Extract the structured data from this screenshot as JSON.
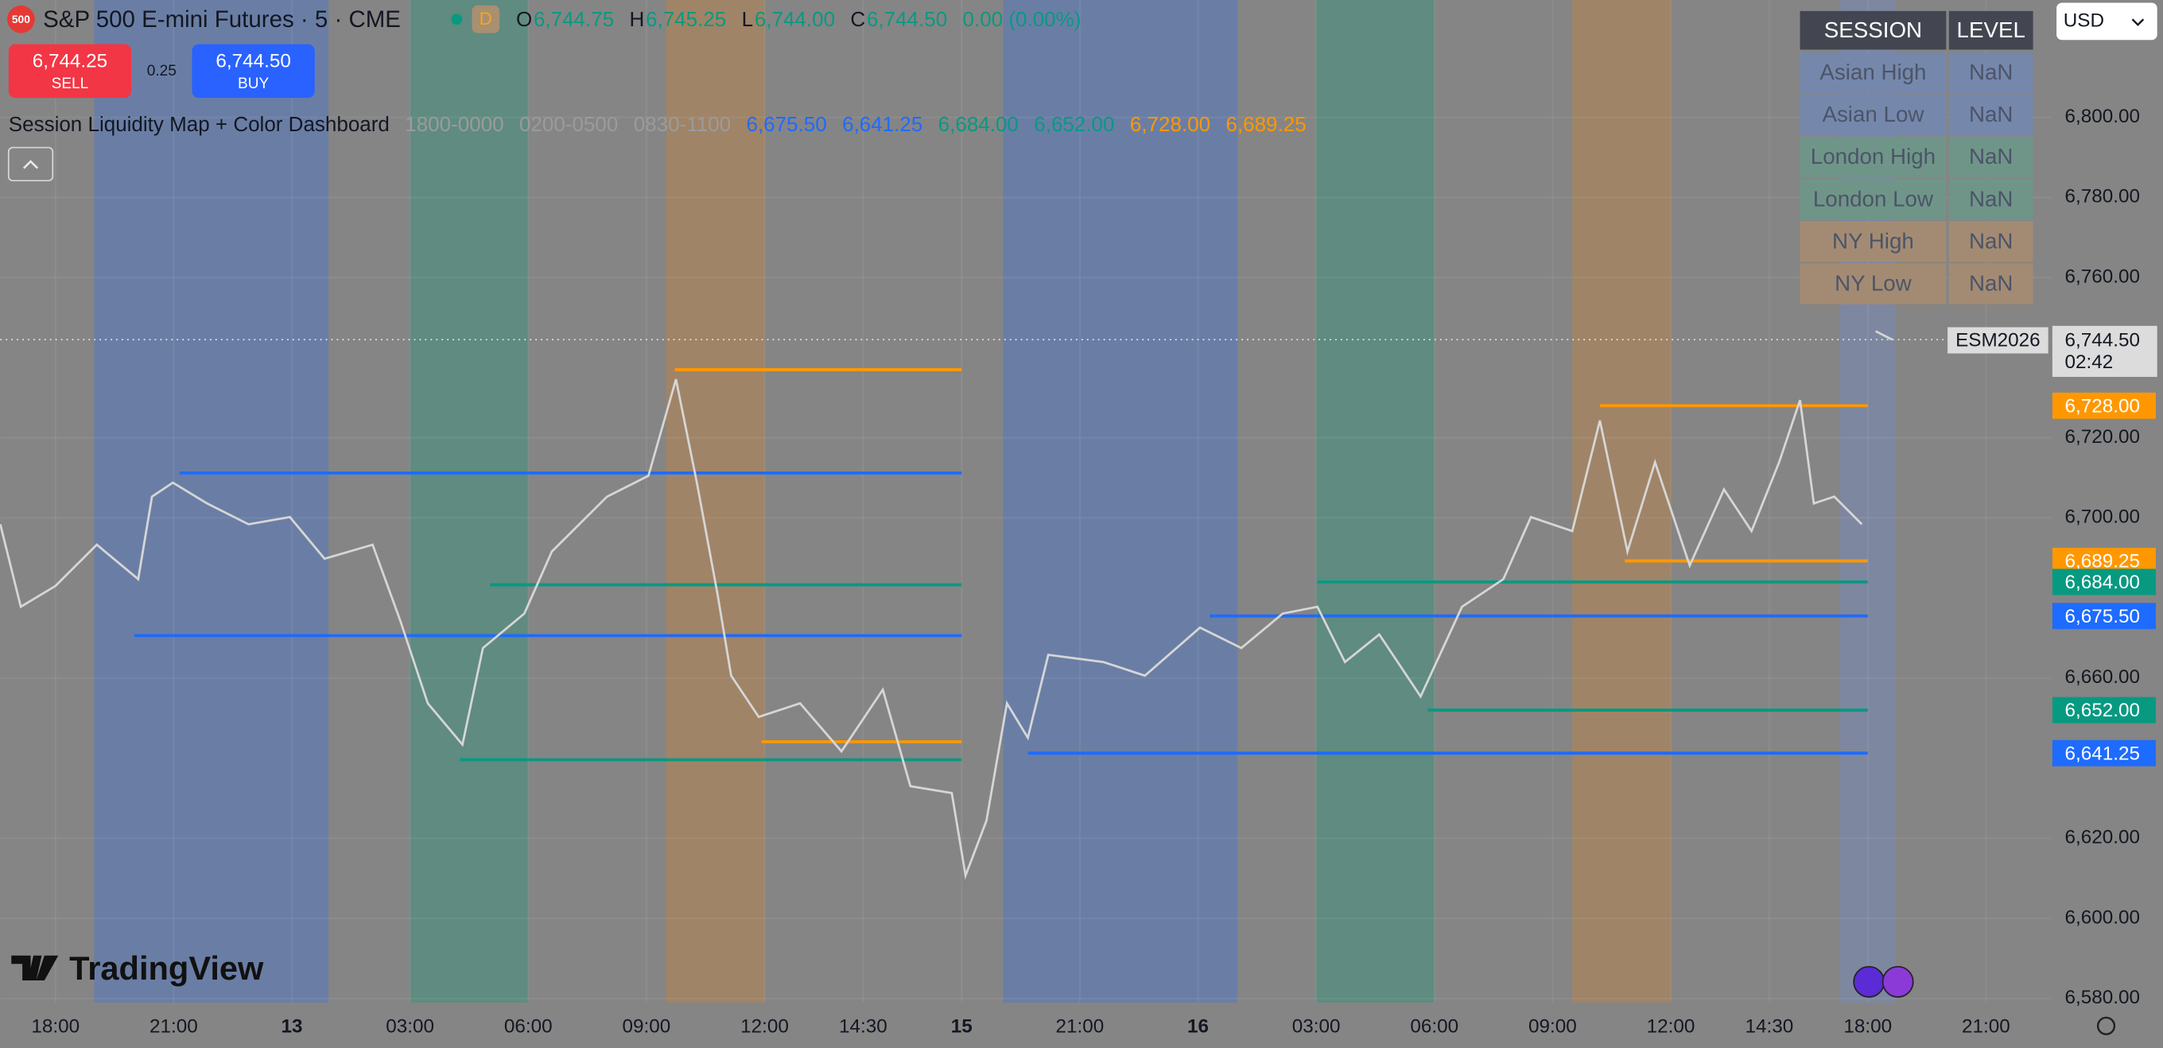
{
  "chart_data": {
    "type": "line",
    "title": "S&P 500 E-mini Futures · 5 · CME",
    "color": "#d6d6d6",
    "x": [
      -1.4,
      -0.88,
      0,
      1.05,
      2.1,
      2.45,
      2.98,
      3.85,
      4.9,
      5.95,
      6.83,
      8.05,
      8.75,
      9.45,
      10.33,
      10.85,
      11.9,
      12.6,
      14.0,
      15.05,
      15.75,
      16.28,
      16.8,
      17.15,
      17.85,
      18.9,
      19.95,
      21.0,
      21.7,
      22.75,
      23.1,
      23.63,
      24.15,
      24.68,
      25.2,
      26.6,
      27.65,
      29.05,
      30.1,
      31.15,
      32.03,
      32.73,
      33.6,
      34.65,
      35.7,
      36.75,
      37.45,
      38.5,
      39.2,
      39.9,
      40.6,
      41.48,
      42.35,
      43.05,
      43.75,
      44.28,
      44.63,
      45.15,
      45.85,
      46.0,
      46.2,
      46.62
    ],
    "values": [
      6698.4,
      6677.8,
      6683.0,
      6693.3,
      6684.7,
      6705.3,
      6708.8,
      6703.6,
      6698.4,
      6700.2,
      6689.8,
      6693.3,
      6674.4,
      6653.7,
      6643.4,
      6667.5,
      6676.1,
      6691.6,
      6705.3,
      6710.5,
      6734.6,
      6708.8,
      6681.2,
      6660.6,
      6650.3,
      6653.7,
      6641.7,
      6657.1,
      6633.0,
      6631.3,
      6610.7,
      6624.4,
      6653.7,
      6645.1,
      6665.8,
      6664.0,
      6660.6,
      6672.6,
      6667.5,
      6676.1,
      6677.8,
      6664.0,
      6670.9,
      6655.4,
      6677.8,
      6684.7,
      6700.2,
      6696.7,
      6724.3,
      6691.6,
      6713.9,
      6688.1,
      6707.1,
      6696.7,
      6713.9,
      6729.4,
      6703.6,
      6705.3,
      6698.4,
      null,
      6746.6,
      6744.5
    ],
    "xlim": [
      -1.4,
      50.65
    ],
    "ylim": [
      6579,
      6829.3
    ],
    "grid": true,
    "xticks": [
      {
        "value": 0,
        "label": "18:00"
      },
      {
        "value": 3,
        "label": "21:00"
      },
      {
        "value": 6,
        "label": "13"
      },
      {
        "value": 9,
        "label": "03:00"
      },
      {
        "value": 12,
        "label": "06:00"
      },
      {
        "value": 15,
        "label": "09:00"
      },
      {
        "value": 18,
        "label": "12:00"
      },
      {
        "value": 20.5,
        "label": "14:30"
      },
      {
        "value": 23,
        "label": "15"
      },
      {
        "value": 26,
        "label": "21:00"
      },
      {
        "value": 29,
        "label": "16"
      },
      {
        "value": 32,
        "label": "03:00"
      },
      {
        "value": 35,
        "label": "06:00"
      },
      {
        "value": 38,
        "label": "09:00"
      },
      {
        "value": 41,
        "label": "12:00"
      },
      {
        "value": 43.5,
        "label": "14:30"
      },
      {
        "value": 46,
        "label": "18:00"
      },
      {
        "value": 49,
        "label": "21:00"
      }
    ],
    "yticks": [
      {
        "value": 6800,
        "label": "6,800.00"
      },
      {
        "value": 6780,
        "label": "6,780.00"
      },
      {
        "value": 6760,
        "label": "6,760.00"
      },
      {
        "value": 6720,
        "label": "6,720.00"
      },
      {
        "value": 6700,
        "label": "6,700.00"
      },
      {
        "value": 6660,
        "label": "6,660.00"
      },
      {
        "value": 6620,
        "label": "6,620.00"
      },
      {
        "value": 6600,
        "label": "6,600.00"
      },
      {
        "value": 6580,
        "label": "6,580.00"
      }
    ],
    "sessions": [
      {
        "start": 0.98,
        "end": 6.93,
        "color": "#6a7ea5"
      },
      {
        "start": 9.0,
        "end": 12.0,
        "color": "#5f8b80"
      },
      {
        "start": 15.5,
        "end": 18.0,
        "color": "#a08467"
      },
      {
        "start": 24.05,
        "end": 30.0,
        "color": "#6a7ea5"
      },
      {
        "start": 32.0,
        "end": 35.0,
        "color": "#5f8b80"
      },
      {
        "start": 38.5,
        "end": 41.0,
        "color": "#a08467"
      },
      {
        "start": 45.3,
        "end": 46.7,
        "color": "#7d87a0"
      }
    ],
    "levels": [
      {
        "start": 15.72,
        "end": 23.0,
        "value": 6737.0,
        "color": "#ff9800"
      },
      {
        "start": 3.15,
        "end": 23.0,
        "value": 6711.2,
        "color": "#1e6bff"
      },
      {
        "start": 11.03,
        "end": 23.0,
        "value": 6683.3,
        "color": "#089981"
      },
      {
        "start": 2.0,
        "end": 23.0,
        "value": 6670.6,
        "color": "#1e6bff"
      },
      {
        "start": 17.92,
        "end": 23.0,
        "value": 6644.1,
        "color": "#ff9800"
      },
      {
        "start": 10.26,
        "end": 23.0,
        "value": 6639.6,
        "color": "#089981"
      },
      {
        "start": 39.2,
        "end": 46.0,
        "value": 6728.0,
        "value_label": "6,728.00",
        "color": "#ff9800"
      },
      {
        "start": 39.83,
        "end": 46.0,
        "value": 6689.25,
        "value_label": "6,689.25",
        "color": "#ff9800"
      },
      {
        "start": 32.03,
        "end": 46.0,
        "value": 6684.0,
        "value_label": "6,684.00",
        "color": "#089981"
      },
      {
        "start": 29.3,
        "end": 46.0,
        "value": 6675.5,
        "value_label": "6,675.50",
        "color": "#1e6bff"
      },
      {
        "start": 34.83,
        "end": 46.0,
        "value": 6652.0,
        "value_label": "6,652.00",
        "color": "#089981"
      },
      {
        "start": 24.68,
        "end": 46.0,
        "value": 6641.25,
        "value_label": "6,641.25",
        "color": "#1e6bff"
      }
    ],
    "last_price": {
      "value": 6744.5,
      "label": "6,744.50",
      "symbol": "ESM2026",
      "countdown": "02:42"
    }
  },
  "header": {
    "logo": "500",
    "badge": "D",
    "ohlc": [
      {
        "label": "O",
        "value": "6,744.75"
      },
      {
        "label": "H",
        "value": "6,745.25"
      },
      {
        "label": "L",
        "value": "6,744.00"
      },
      {
        "label": "C",
        "value": "6,744.50"
      }
    ],
    "change": "0.00 (0.00%)",
    "sell_price": "6,744.25",
    "sell": "SELL",
    "spread": "0.25",
    "buy_price": "6,744.50",
    "buy": "BUY",
    "indicator": "Session Liquidity Map + Color Dashboard",
    "sessions": [
      "1800-0000",
      "0200-0500",
      "0830-1100"
    ],
    "currency": "USD",
    "brand": "TradingView"
  },
  "dashboard": {
    "headers": [
      "SESSION",
      "LEVEL"
    ],
    "rows": [
      [
        "Asian High",
        "NaN"
      ],
      [
        "Asian Low",
        "NaN"
      ],
      [
        "London High",
        "NaN"
      ],
      [
        "London Low",
        "NaN"
      ],
      [
        "NY High",
        "NaN"
      ],
      [
        "NY Low",
        "NaN"
      ]
    ]
  }
}
